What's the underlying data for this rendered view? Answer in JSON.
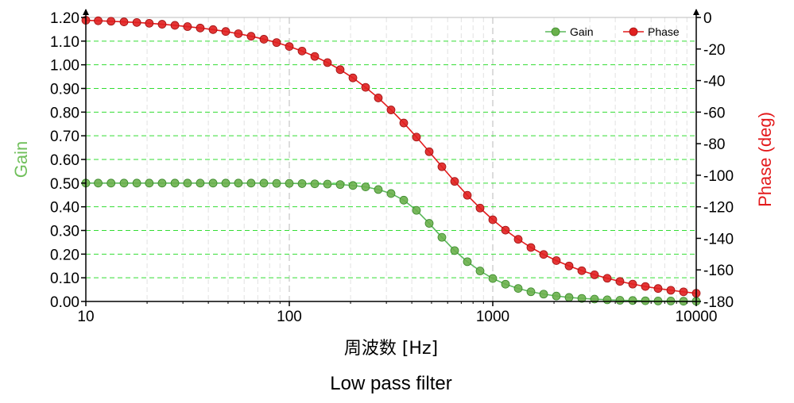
{
  "chart_data": {
    "type": "line",
    "title": "",
    "caption": "Low pass filter",
    "xlabel": "周波数 [Hz]",
    "ylabel_left": "Gain",
    "ylabel_right": "Phase (deg)",
    "x_scale": "log",
    "xlim": [
      10,
      10000
    ],
    "ylim_left": [
      0,
      1.2
    ],
    "ylim_right": [
      -180,
      0
    ],
    "x_ticks": [
      "10",
      "100",
      "1000",
      "10000"
    ],
    "y_left_ticks": [
      "0.00",
      "0.10",
      "0.20",
      "0.30",
      "0.40",
      "0.50",
      "0.60",
      "0.70",
      "0.80",
      "0.90",
      "1.00",
      "1.10",
      "1.20"
    ],
    "y_right_ticks": [
      "0",
      "-20",
      "-40",
      "-60",
      "-80",
      "-100",
      "-120",
      "-140",
      "-160",
      "-180"
    ],
    "grid": true,
    "legend_position": "top-right",
    "series": [
      {
        "name": "Gain",
        "axis": "left",
        "color": "#5cb85c",
        "x": [
          10,
          11.5,
          13.3,
          15.4,
          17.8,
          20.5,
          23.7,
          27.4,
          31.6,
          36.5,
          42.2,
          48.7,
          56.2,
          64.9,
          75.0,
          86.6,
          100,
          115.5,
          133.4,
          154,
          177.8,
          205.4,
          237.1,
          273.8,
          316.2,
          365.2,
          421.7,
          487,
          562.3,
          649.4,
          749.9,
          866,
          1000,
          1154.8,
          1333.5,
          1539.9,
          1778.3,
          2053.5,
          2371.4,
          2738.4,
          3162.3,
          3651.7,
          4217,
          4869.7,
          5623.4,
          6493.8,
          7498.9,
          8659.6,
          10000
        ],
        "values": [
          0.5,
          0.5,
          0.5,
          0.5,
          0.5,
          0.5,
          0.5,
          0.5,
          0.5,
          0.5,
          0.5,
          0.5,
          0.5,
          0.5,
          0.5,
          0.499,
          0.499,
          0.498,
          0.497,
          0.496,
          0.494,
          0.49,
          0.484,
          0.473,
          0.456,
          0.428,
          0.385,
          0.33,
          0.271,
          0.215,
          0.168,
          0.129,
          0.097,
          0.073,
          0.055,
          0.041,
          0.031,
          0.023,
          0.017,
          0.013,
          0.01,
          0.007,
          0.005,
          0.004,
          0.003,
          0.002,
          0.002,
          0.001,
          0.001
        ]
      },
      {
        "name": "Phase",
        "axis": "right",
        "color": "#e31a1c",
        "x": [
          10,
          11.5,
          13.3,
          15.4,
          17.8,
          20.5,
          23.7,
          27.4,
          31.6,
          36.5,
          42.2,
          48.7,
          56.2,
          64.9,
          75.0,
          86.6,
          100,
          115.5,
          133.4,
          154,
          177.8,
          205.4,
          237.1,
          273.8,
          316.2,
          365.2,
          421.7,
          487,
          562.3,
          649.4,
          749.9,
          866,
          1000,
          1154.8,
          1333.5,
          1539.9,
          1778.3,
          2053.5,
          2371.4,
          2738.4,
          3162.3,
          3651.7,
          4217,
          4869.7,
          5623.4,
          6493.8,
          7498.9,
          8659.6,
          10000
        ],
        "values": [
          -1.8,
          -2.1,
          -2.4,
          -2.8,
          -3.2,
          -3.7,
          -4.3,
          -5.0,
          -5.8,
          -6.7,
          -7.7,
          -8.9,
          -10.3,
          -11.9,
          -13.8,
          -15.9,
          -18.4,
          -21.3,
          -24.7,
          -28.6,
          -33.1,
          -38.3,
          -44.3,
          -51.0,
          -58.6,
          -66.9,
          -75.8,
          -85.1,
          -94.6,
          -103.9,
          -112.7,
          -120.8,
          -128.2,
          -134.8,
          -140.6,
          -145.8,
          -150.2,
          -154.1,
          -157.5,
          -160.5,
          -163.1,
          -165.3,
          -167.3,
          -169.0,
          -170.5,
          -171.8,
          -172.9,
          -173.9,
          -174.8
        ]
      }
    ]
  }
}
